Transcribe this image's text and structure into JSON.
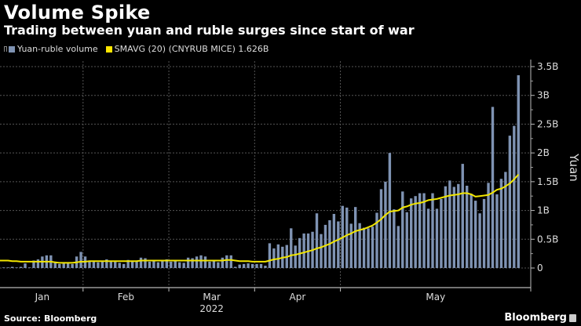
{
  "header": {
    "title": "Volume Spike",
    "subtitle": "Trading between yuan and ruble surges since start of war"
  },
  "legend": [
    {
      "label": "Yuan-ruble volume",
      "color": "#7f93b3"
    },
    {
      "label": "SMAVG (20) (CNYRUB MICE) 1.626B",
      "color": "#ffe600"
    }
  ],
  "footer": {
    "source": "Source: Bloomberg",
    "brand": "Bloomberg"
  },
  "colors": {
    "bar": "#7f93b3",
    "line": "#f2e600",
    "grid": "#555555",
    "axis": "#888888"
  },
  "chart_data": {
    "type": "bar",
    "title": "Volume Spike",
    "subtitle": "Trading between yuan and ruble surges since start of war",
    "xlabel": "2022",
    "ylabel": "Yuan",
    "ylim": [
      0,
      3.5
    ],
    "y_unit": "B",
    "yticks": [
      0,
      0.5,
      1,
      1.5,
      2,
      2.5,
      3,
      3.5
    ],
    "ytick_labels": [
      "0",
      "0.5B",
      "1B",
      "1.5B",
      "2B",
      "2.5B",
      "3B",
      "3.5B"
    ],
    "month_labels": [
      "Jan",
      "Feb",
      "Mar",
      "Apr",
      "May"
    ],
    "year_label": "2022",
    "month_bounds": [
      0,
      19,
      39,
      59,
      79,
      96
    ],
    "grid": true,
    "legend_position": "top-left",
    "series": [
      {
        "name": "Yuan-ruble volume",
        "type": "bar",
        "values": [
          0.01,
          0.01,
          0.02,
          0.01,
          0.02,
          0.08,
          0.01,
          0.13,
          0.15,
          0.2,
          0.22,
          0.22,
          0.11,
          0.07,
          0.08,
          0.08,
          0.07,
          0.2,
          0.28,
          0.2,
          0.13,
          0.12,
          0.1,
          0.12,
          0.15,
          0.13,
          0.12,
          0.09,
          0.07,
          0.14,
          0.13,
          0.13,
          0.18,
          0.17,
          0.11,
          0.13,
          0.1,
          0.13,
          0.15,
          0.11,
          0.12,
          0.1,
          0.09,
          0.18,
          0.17,
          0.2,
          0.22,
          0.2,
          0.11,
          0.13,
          0.1,
          0.18,
          0.22,
          0.22,
          0.02,
          0.06,
          0.07,
          0.08,
          0.07,
          0.07,
          0.07,
          0.04,
          0.43,
          0.34,
          0.41,
          0.37,
          0.4,
          0.69,
          0.39,
          0.52,
          0.6,
          0.6,
          0.63,
          0.95,
          0.59,
          0.75,
          0.83,
          0.94,
          0.81,
          1.08,
          1.05,
          0.77,
          1.06,
          0.78,
          0.7,
          0.69,
          0.72,
          0.96,
          1.37,
          1.5,
          2.0,
          1.02,
          0.73,
          1.33,
          0.97,
          1.21,
          1.25,
          1.3,
          1.3,
          1.03,
          1.3,
          1.03,
          1.2,
          1.42,
          1.52,
          1.41,
          1.46,
          1.81,
          1.43,
          1.29,
          1.17,
          0.95,
          1.2,
          1.48,
          2.8,
          1.28,
          1.55,
          1.67,
          2.3,
          2.47,
          3.35
        ],
        "color": "#7f93b3"
      },
      {
        "name": "SMAVG (20) (CNYRUB MICE)",
        "type": "line",
        "last_value_label": "1.626B",
        "values": [
          0.13,
          0.13,
          0.12,
          0.12,
          0.11,
          0.11,
          0.11,
          0.11,
          0.11,
          0.11,
          0.11,
          0.11,
          0.1,
          0.09,
          0.09,
          0.09,
          0.09,
          0.1,
          0.11,
          0.11,
          0.12,
          0.12,
          0.12,
          0.12,
          0.12,
          0.12,
          0.12,
          0.12,
          0.12,
          0.12,
          0.12,
          0.12,
          0.13,
          0.13,
          0.13,
          0.13,
          0.13,
          0.13,
          0.13,
          0.13,
          0.13,
          0.13,
          0.13,
          0.13,
          0.13,
          0.13,
          0.13,
          0.13,
          0.13,
          0.13,
          0.13,
          0.13,
          0.14,
          0.14,
          0.13,
          0.12,
          0.12,
          0.12,
          0.11,
          0.11,
          0.11,
          0.11,
          0.13,
          0.15,
          0.16,
          0.18,
          0.19,
          0.22,
          0.23,
          0.25,
          0.27,
          0.29,
          0.31,
          0.34,
          0.36,
          0.39,
          0.42,
          0.46,
          0.49,
          0.53,
          0.57,
          0.6,
          0.64,
          0.66,
          0.68,
          0.71,
          0.74,
          0.79,
          0.85,
          0.92,
          0.98,
          0.99,
          1.0,
          1.05,
          1.07,
          1.1,
          1.12,
          1.13,
          1.15,
          1.18,
          1.19,
          1.2,
          1.22,
          1.24,
          1.26,
          1.27,
          1.28,
          1.3,
          1.3,
          1.28,
          1.24,
          1.25,
          1.26,
          1.27,
          1.31,
          1.36,
          1.38,
          1.42,
          1.47,
          1.54,
          1.626
        ],
        "color": "#f2e600"
      }
    ]
  }
}
